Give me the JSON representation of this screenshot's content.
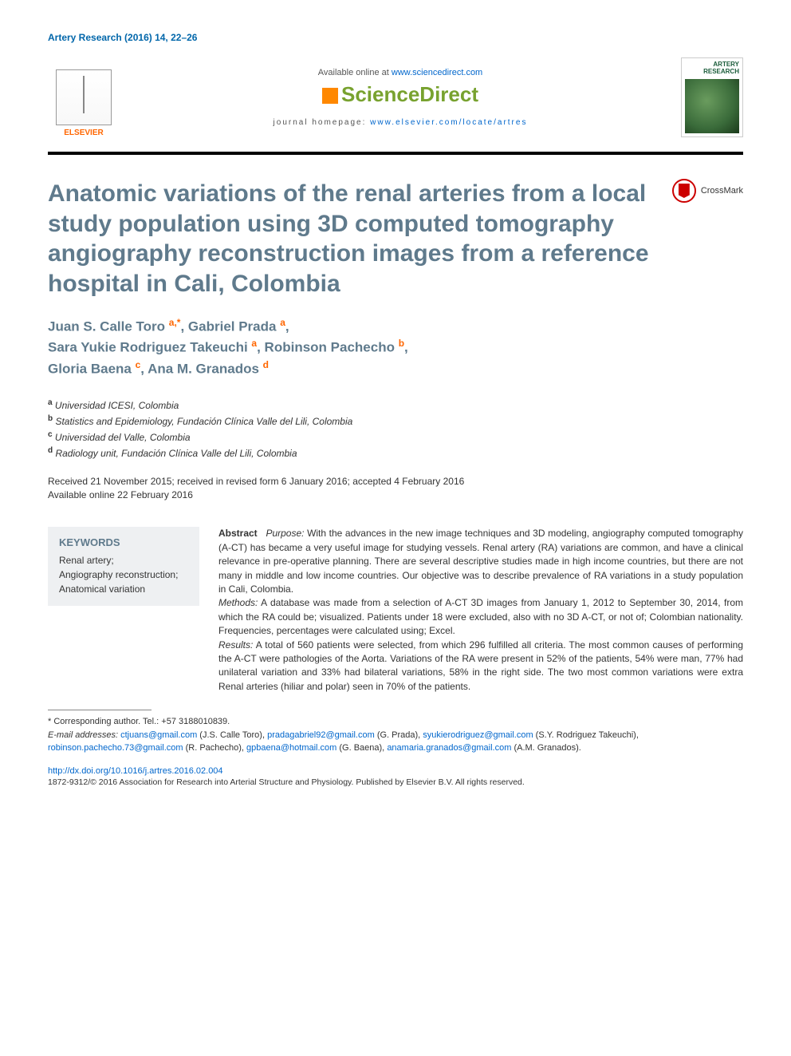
{
  "citation": "Artery Research (2016) 14, 22–26",
  "header": {
    "available_prefix": "Available online at ",
    "available_url": "www.sciencedirect.com",
    "sciencedirect": "ScienceDirect",
    "homepage_prefix": "journal homepage: ",
    "homepage_url": "www.elsevier.com/locate/artres",
    "elsevier_label": "ELSEVIER",
    "journal_cover_title": "ARTERY RESEARCH"
  },
  "crossmark_label": "CrossMark",
  "title": "Anatomic variations of the renal arteries from a local study population using 3D computed tomography angiography reconstruction images from a reference hospital in Cali, Colombia",
  "authors_html": "Juan S. Calle Toro <sup>a,*</sup>, Gabriel Prada <sup>a</sup>,<br>Sara Yukie Rodriguez Takeuchi <sup>a</sup>, Robinson Pachecho <sup>b</sup>,<br>Gloria Baena <sup>c</sup>, Ana M. Granados <sup>d</sup>",
  "affiliations": [
    {
      "sup": "a",
      "text": "Universidad ICESI, Colombia"
    },
    {
      "sup": "b",
      "text": "Statistics and Epidemiology, Fundación Clínica Valle del Lili, Colombia"
    },
    {
      "sup": "c",
      "text": "Universidad del Valle, Colombia"
    },
    {
      "sup": "d",
      "text": "Radiology unit, Fundación Clínica Valle del Lili, Colombia"
    }
  ],
  "history_line1": "Received 21 November 2015; received in revised form 6 January 2016; accepted 4 February 2016",
  "history_line2": "Available online 22 February 2016",
  "keywords": {
    "heading": "KEYWORDS",
    "items": "Renal artery;\nAngiography reconstruction;\nAnatomical variation"
  },
  "abstract": {
    "label": "Abstract",
    "purpose_label": "Purpose:",
    "purpose": " With the advances in the new image techniques and 3D modeling, angiography computed tomography (A-CT) has became a very useful image for studying vessels. Renal artery (RA) variations are common, and have a clinical relevance in pre-operative planning. There are several descriptive studies made in high income countries, but there are not many in middle and low income countries. Our objective was to describe prevalence of RA variations in a study population in Cali, Colombia.",
    "methods_label": "Methods:",
    "methods": " A database was made from a selection of A-CT 3D images from January 1, 2012 to September 30, 2014, from which the RA could be; visualized. Patients under 18 were excluded, also with no 3D A-CT, or not of; Colombian nationality. Frequencies, percentages were calculated using; Excel.",
    "results_label": "Results:",
    "results": " A total of 560 patients were selected, from which 296 fulfilled all criteria. The most common causes of performing the A-CT were pathologies of the Aorta. Variations of the RA were present in 52% of the patients, 54% were man, 77% had unilateral variation and 33% had bilateral variations, 58% in the right side. The two most common variations were extra Renal arteries (hiliar and polar) seen in 70% of the patients."
  },
  "footnotes": {
    "corresponding": "* Corresponding author. Tel.: +57 3188010839.",
    "email_label": "E-mail addresses: ",
    "emails": [
      {
        "addr": "ctjuans@gmail.com",
        "who": "(J.S. Calle Toro)"
      },
      {
        "addr": "pradagabriel92@gmail.com",
        "who": "(G. Prada)"
      },
      {
        "addr": "syukierodriguez@gmail.com",
        "who": "(S.Y. Rodriguez Takeuchi)"
      },
      {
        "addr": "robinson.pachecho.73@gmail.com",
        "who": "(R. Pachecho)"
      },
      {
        "addr": "gpbaena@hotmail.com",
        "who": "(G. Baena)"
      },
      {
        "addr": "anamaria.granados@gmail.com",
        "who": "(A.M. Granados)."
      }
    ]
  },
  "doi": "http://dx.doi.org/10.1016/j.artres.2016.02.004",
  "copyright": "1872-9312/© 2016 Association for Research into Arterial Structure and Physiology. Published by Elsevier B.V. All rights reserved.",
  "colors": {
    "heading": "#5f7a8c",
    "link": "#0066cc",
    "elsevier": "#ff6600",
    "sciencedirect": "#78a22f",
    "keywords_bg": "#eef0f2"
  }
}
